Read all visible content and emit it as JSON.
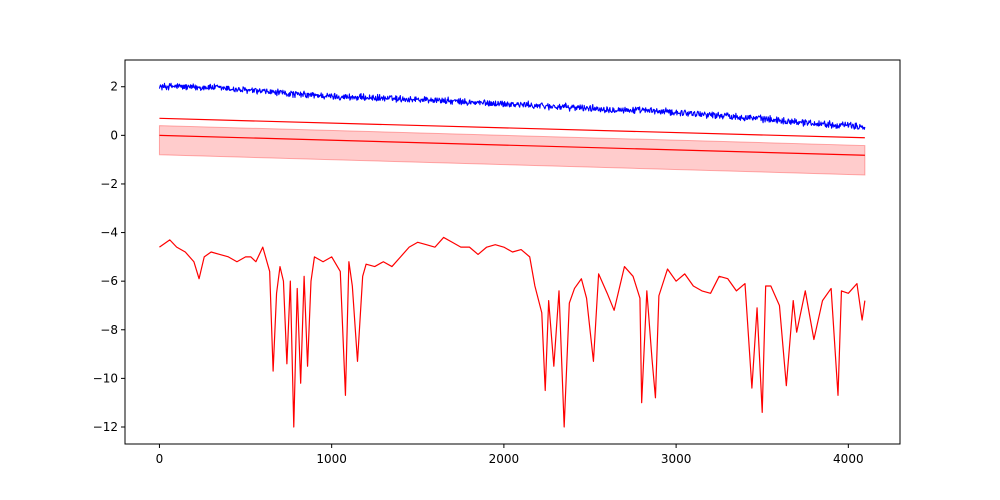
{
  "chart_data": {
    "type": "line",
    "title": "",
    "xlabel": "",
    "ylabel": "",
    "xlim": [
      -200,
      4300
    ],
    "ylim": [
      -12.7,
      3.1
    ],
    "x_ticks": [
      0,
      1000,
      2000,
      3000,
      4000
    ],
    "x_tick_labels": [
      "0",
      "1000",
      "2000",
      "3000",
      "4000"
    ],
    "y_ticks": [
      2,
      0,
      -2,
      -4,
      -6,
      -8,
      -10,
      -12
    ],
    "y_tick_labels": [
      "2",
      "0",
      "−2",
      "−4",
      "−6",
      "−8",
      "−10",
      "−12"
    ],
    "grid": false,
    "legend": "none",
    "colors": {
      "blue": "#0000ff",
      "red": "#ff0000",
      "band_fill": "#ff0000"
    },
    "series": [
      {
        "kind": "noisy-line",
        "color": "#0000ff",
        "x": [
          0,
          100,
          200,
          300,
          400,
          500,
          600,
          700,
          800,
          900,
          1000,
          1200,
          1400,
          1600,
          1800,
          2000,
          2200,
          2400,
          2600,
          2800,
          3000,
          3200,
          3400,
          3600,
          3800,
          4000,
          4096
        ],
        "y": [
          2.0,
          2.02,
          1.97,
          1.98,
          1.92,
          1.85,
          1.8,
          1.75,
          1.68,
          1.65,
          1.6,
          1.55,
          1.5,
          1.45,
          1.35,
          1.3,
          1.22,
          1.15,
          1.08,
          1.02,
          0.95,
          0.85,
          0.75,
          0.62,
          0.5,
          0.4,
          0.35
        ],
        "noise_amplitude": 0.13
      },
      {
        "kind": "line",
        "color": "#ff0000",
        "x": [
          0,
          4096
        ],
        "y": [
          0.7,
          -0.1
        ]
      },
      {
        "kind": "line-with-band",
        "color": "#ff0000",
        "x": [
          0,
          4096
        ],
        "y": [
          0.0,
          -0.82
        ],
        "band_upper": [
          0.4,
          -0.42
        ],
        "band_lower": [
          -0.8,
          -1.63
        ]
      },
      {
        "kind": "line",
        "color": "#ff0000",
        "x": [
          0,
          60,
          100,
          150,
          200,
          230,
          260,
          300,
          350,
          400,
          450,
          500,
          530,
          560,
          600,
          640,
          660,
          680,
          700,
          720,
          740,
          760,
          780,
          800,
          820,
          840,
          860,
          880,
          900,
          950,
          1000,
          1050,
          1080,
          1100,
          1120,
          1150,
          1180,
          1200,
          1250,
          1300,
          1350,
          1400,
          1450,
          1500,
          1550,
          1600,
          1650,
          1700,
          1750,
          1800,
          1850,
          1900,
          1950,
          2000,
          2050,
          2100,
          2150,
          2180,
          2220,
          2240,
          2260,
          2290,
          2320,
          2350,
          2380,
          2410,
          2450,
          2480,
          2520,
          2550,
          2600,
          2640,
          2700,
          2750,
          2790,
          2800,
          2830,
          2860,
          2880,
          2900,
          2950,
          3000,
          3050,
          3100,
          3150,
          3200,
          3250,
          3300,
          3350,
          3400,
          3440,
          3470,
          3500,
          3520,
          3550,
          3600,
          3640,
          3680,
          3700,
          3750,
          3800,
          3850,
          3900,
          3940,
          3960,
          4000,
          4050,
          4080,
          4096
        ],
        "y": [
          -4.6,
          -4.3,
          -4.6,
          -4.8,
          -5.2,
          -5.9,
          -5.0,
          -4.8,
          -4.9,
          -5.0,
          -5.2,
          -5.0,
          -5.0,
          -5.2,
          -4.6,
          -5.6,
          -9.7,
          -6.5,
          -5.4,
          -6.0,
          -9.4,
          -6.0,
          -12.0,
          -6.3,
          -10.2,
          -5.8,
          -9.5,
          -6.0,
          -5.0,
          -5.2,
          -5.0,
          -5.6,
          -10.7,
          -5.2,
          -6.2,
          -9.3,
          -5.8,
          -5.3,
          -5.4,
          -5.2,
          -5.4,
          -5.0,
          -4.6,
          -4.4,
          -4.5,
          -4.6,
          -4.2,
          -4.4,
          -4.6,
          -4.6,
          -4.9,
          -4.6,
          -4.5,
          -4.6,
          -4.8,
          -4.7,
          -5.0,
          -6.2,
          -7.3,
          -10.5,
          -6.8,
          -9.5,
          -6.4,
          -12.0,
          -6.9,
          -6.3,
          -5.9,
          -6.7,
          -9.3,
          -5.7,
          -6.5,
          -7.2,
          -5.4,
          -5.8,
          -6.7,
          -11.0,
          -6.4,
          -9.2,
          -10.8,
          -6.6,
          -5.5,
          -6.0,
          -5.7,
          -6.2,
          -6.4,
          -6.5,
          -5.8,
          -5.9,
          -6.4,
          -6.1,
          -10.4,
          -7.1,
          -11.4,
          -6.2,
          -6.2,
          -7.0,
          -10.3,
          -6.8,
          -8.1,
          -6.4,
          -8.4,
          -6.8,
          -6.3,
          -10.7,
          -6.4,
          -6.5,
          -6.1,
          -7.6,
          -6.8
        ]
      }
    ]
  }
}
